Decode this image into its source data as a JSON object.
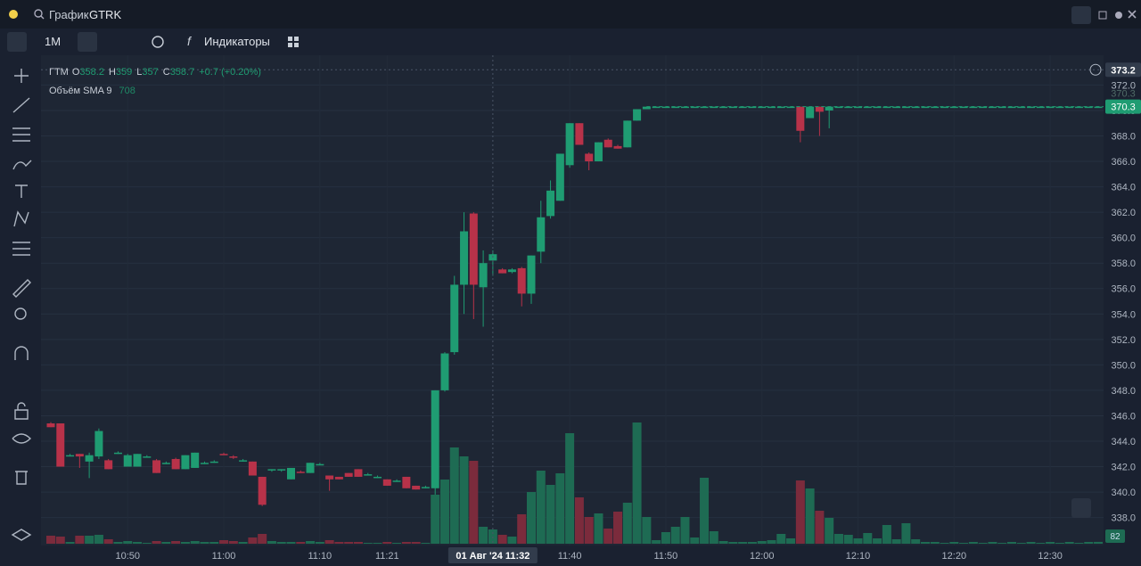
{
  "header": {
    "search_label": "График",
    "symbol": "GTRK"
  },
  "toolbar": {
    "interval": "1M",
    "indicators": "Индикаторы"
  },
  "chart_data": {
    "type": "candlestick",
    "name": "ГТМ",
    "ohlc_letters": [
      "O",
      "H",
      "L",
      "C"
    ],
    "change": "+0.7 (+0.20%)",
    "volume_name": "Объём SMA 9",
    "volume_sma": 708,
    "crosshair_index": 46,
    "crosshair_price": 373.2,
    "crosshair_time": "01 Авг '24  11:32",
    "up_color": "#1f9c72",
    "down_color": "#b83249",
    "volume_up_color": "#1e6b53",
    "volume_down_color": "#7b2b3c",
    "ylim": [
      335.8,
      374.2
    ],
    "yticks": [
      {
        "value": 338,
        "label": "338.0"
      },
      {
        "value": 340,
        "label": "340.0"
      },
      {
        "value": 342,
        "label": "342.0"
      },
      {
        "value": 344,
        "label": "344.0"
      },
      {
        "value": 346,
        "label": "346.0"
      },
      {
        "value": 348,
        "label": "348.0"
      },
      {
        "value": 350,
        "label": "350.0"
      },
      {
        "value": 352,
        "label": "352.0"
      },
      {
        "value": 354,
        "label": "354.0"
      },
      {
        "value": 356,
        "label": "356.0"
      },
      {
        "value": 358,
        "label": "358.0"
      },
      {
        "value": 360,
        "label": "360.0"
      },
      {
        "value": 362,
        "label": "362.0"
      },
      {
        "value": 364,
        "label": "364.0"
      },
      {
        "value": 366,
        "label": "366.0"
      },
      {
        "value": 368,
        "label": "368.0"
      },
      {
        "value": 370,
        "label": "370.0"
      },
      {
        "value": 372,
        "label": "372.0"
      }
    ],
    "volume_lim": [
      0,
      6000
    ],
    "categories": [
      null,
      null,
      null,
      null,
      null,
      null,
      null,
      null,
      "10:50",
      null,
      null,
      null,
      null,
      null,
      null,
      null,
      null,
      null,
      "11:00",
      null,
      null,
      null,
      null,
      null,
      null,
      null,
      null,
      null,
      "11:10",
      null,
      null,
      null,
      null,
      null,
      null,
      "11:21",
      null,
      null,
      null,
      null,
      null,
      null,
      null,
      null,
      null,
      null,
      null,
      null,
      null,
      null,
      null,
      null,
      null,
      null,
      "11:40",
      null,
      null,
      null,
      null,
      null,
      null,
      null,
      null,
      null,
      "11:50",
      null,
      null,
      null,
      null,
      null,
      null,
      null,
      null,
      null,
      "12:00",
      null,
      null,
      null,
      null,
      null,
      null,
      null,
      null,
      null,
      "12:10",
      null,
      null,
      null,
      null,
      null,
      null,
      null,
      null,
      null,
      "12:20",
      null,
      null,
      null,
      null,
      null,
      null,
      null,
      null,
      null,
      "12:30",
      null,
      null,
      null,
      null,
      null
    ],
    "ohlc": [
      [
        345.4,
        345.5,
        345.1,
        345.1
      ],
      [
        345.4,
        345.4,
        342.0,
        342.0
      ],
      [
        342.9,
        343.0,
        342.8,
        342.9
      ],
      [
        343.0,
        343.0,
        341.9,
        342.8
      ],
      [
        342.4,
        343.1,
        341.1,
        342.9
      ],
      [
        342.8,
        345.0,
        342.6,
        344.8
      ],
      [
        342.5,
        342.6,
        341.8,
        341.8
      ],
      [
        343.1,
        343.2,
        343.0,
        343.1
      ],
      [
        342.0,
        343.0,
        342.0,
        342.9
      ],
      [
        342.0,
        343.0,
        342.0,
        343.0
      ],
      [
        342.8,
        342.9,
        342.7,
        342.8
      ],
      [
        342.5,
        342.6,
        341.5,
        341.5
      ],
      [
        342.3,
        342.4,
        342.2,
        342.3
      ],
      [
        342.6,
        342.7,
        341.8,
        341.8
      ],
      [
        341.8,
        342.9,
        341.8,
        342.9
      ],
      [
        341.9,
        343.1,
        341.9,
        343.1
      ],
      [
        342.3,
        342.4,
        342.2,
        342.3
      ],
      [
        342.4,
        342.5,
        342.3,
        342.4
      ],
      [
        343.0,
        343.1,
        342.9,
        342.9
      ],
      [
        342.8,
        342.9,
        342.6,
        342.7
      ],
      [
        342.5,
        342.6,
        342.4,
        342.5
      ],
      [
        342.4,
        342.4,
        341.3,
        341.3
      ],
      [
        341.2,
        341.2,
        338.9,
        339.0
      ],
      [
        341.7,
        341.8,
        341.6,
        341.8
      ],
      [
        341.7,
        341.8,
        341.6,
        341.8
      ],
      [
        341.0,
        341.9,
        341.0,
        341.9
      ],
      [
        341.6,
        341.7,
        341.5,
        341.5
      ],
      [
        341.5,
        342.3,
        341.5,
        342.3
      ],
      [
        342.2,
        342.3,
        342.1,
        342.2
      ],
      [
        341.3,
        341.3,
        340.1,
        341.0
      ],
      [
        341.2,
        341.2,
        341.0,
        341.0
      ],
      [
        341.5,
        341.5,
        341.2,
        341.2
      ],
      [
        341.8,
        341.8,
        341.2,
        341.2
      ],
      [
        341.4,
        341.5,
        341.3,
        341.4
      ],
      [
        341.2,
        341.3,
        341.1,
        341.2
      ],
      [
        341.0,
        341.0,
        340.5,
        340.5
      ],
      [
        340.9,
        341.0,
        340.8,
        340.9
      ],
      [
        341.2,
        341.2,
        340.3,
        340.3
      ],
      [
        340.5,
        340.5,
        340.2,
        340.2
      ],
      [
        340.4,
        340.5,
        340.3,
        340.4
      ],
      [
        340.3,
        348.0,
        339.8,
        348.0
      ],
      [
        348.0,
        351.0,
        347.9,
        350.9
      ],
      [
        351.0,
        357.0,
        350.8,
        356.3
      ],
      [
        356.3,
        362.0,
        354.0,
        360.5
      ],
      [
        361.9,
        362.0,
        353.6,
        356.3
      ],
      [
        356.1,
        359.0,
        353.0,
        358.0
      ],
      [
        358.2,
        359.0,
        357.0,
        358.7
      ],
      [
        357.5,
        357.6,
        357.2,
        357.2
      ],
      [
        357.3,
        357.6,
        357.2,
        357.5
      ],
      [
        357.6,
        357.7,
        354.6,
        355.6
      ],
      [
        355.6,
        358.6,
        354.8,
        358.6
      ],
      [
        358.9,
        362.9,
        358.0,
        361.6
      ],
      [
        361.7,
        364.5,
        361.5,
        363.7
      ],
      [
        362.9,
        366.6,
        362.9,
        366.6
      ],
      [
        365.7,
        369.0,
        365.5,
        369.0
      ],
      [
        369.0,
        369.0,
        367.3,
        367.3
      ],
      [
        366.6,
        366.7,
        365.3,
        366.0
      ],
      [
        366.0,
        367.5,
        366.0,
        367.5
      ],
      [
        367.7,
        367.8,
        367.1,
        367.1
      ],
      [
        367.2,
        367.3,
        367.0,
        367.0
      ],
      [
        367.1,
        369.2,
        367.1,
        369.2
      ],
      [
        369.2,
        370.1,
        369.2,
        370.1
      ],
      [
        370.1,
        370.3,
        370.1,
        370.3
      ],
      [
        370.3,
        370.3,
        370.3,
        370.3
      ],
      [
        370.3,
        370.3,
        370.3,
        370.3
      ],
      [
        370.3,
        370.3,
        370.3,
        370.3
      ],
      [
        370.3,
        370.3,
        370.3,
        370.3
      ],
      [
        370.3,
        370.3,
        370.3,
        370.3
      ],
      [
        370.3,
        370.3,
        370.3,
        370.3
      ],
      [
        370.3,
        370.3,
        370.3,
        370.3
      ],
      [
        370.3,
        370.3,
        370.3,
        370.3
      ],
      [
        370.3,
        370.3,
        370.3,
        370.3
      ],
      [
        370.3,
        370.3,
        370.3,
        370.3
      ],
      [
        370.3,
        370.3,
        370.3,
        370.3
      ],
      [
        370.3,
        370.3,
        370.3,
        370.3
      ],
      [
        370.3,
        370.3,
        370.3,
        370.3
      ],
      [
        370.3,
        370.3,
        370.3,
        370.3
      ],
      [
        370.3,
        370.3,
        370.3,
        370.3
      ],
      [
        370.3,
        370.3,
        367.5,
        368.4
      ],
      [
        369.4,
        370.3,
        369.4,
        370.3
      ],
      [
        370.3,
        370.3,
        368.0,
        369.9
      ],
      [
        370.0,
        370.3,
        368.6,
        370.3
      ],
      [
        370.3,
        370.3,
        370.3,
        370.3
      ],
      [
        370.3,
        370.3,
        370.3,
        370.3
      ],
      [
        370.3,
        370.3,
        370.3,
        370.3
      ],
      [
        370.3,
        370.3,
        370.3,
        370.3
      ],
      [
        370.3,
        370.3,
        370.3,
        370.3
      ],
      [
        370.3,
        370.3,
        370.3,
        370.3
      ],
      [
        370.3,
        370.3,
        370.3,
        370.3
      ],
      [
        370.3,
        370.3,
        370.3,
        370.3
      ],
      [
        370.3,
        370.3,
        370.3,
        370.3
      ],
      [
        370.3,
        370.3,
        370.3,
        370.3
      ],
      [
        370.3,
        370.3,
        370.3,
        370.3
      ],
      [
        370.3,
        370.3,
        370.3,
        370.3
      ],
      [
        370.3,
        370.3,
        370.3,
        370.3
      ],
      [
        370.3,
        370.3,
        370.3,
        370.3
      ],
      [
        370.3,
        370.3,
        370.3,
        370.3
      ],
      [
        370.3,
        370.3,
        370.3,
        370.3
      ],
      [
        370.3,
        370.3,
        370.3,
        370.3
      ],
      [
        370.3,
        370.3,
        370.3,
        370.3
      ],
      [
        370.3,
        370.3,
        370.3,
        370.3
      ],
      [
        370.3,
        370.3,
        370.3,
        370.3
      ],
      [
        370.3,
        370.3,
        370.3,
        370.3
      ],
      [
        370.3,
        370.3,
        370.3,
        370.3
      ],
      [
        370.3,
        370.3,
        370.3,
        370.3
      ],
      [
        370.3,
        370.3,
        370.3,
        370.3
      ],
      [
        370.3,
        370.3,
        370.3,
        370.3
      ],
      [
        370.3,
        370.3,
        370.3,
        370.3
      ],
      [
        370.3,
        370.3,
        370.3,
        370.3
      ],
      [
        370.3,
        370.3,
        370.3,
        370.3
      ]
    ],
    "volume": [
      360,
      320,
      80,
      360,
      360,
      400,
      200,
      80,
      120,
      80,
      40,
      120,
      80,
      120,
      80,
      120,
      80,
      80,
      160,
      120,
      80,
      280,
      440,
      120,
      80,
      80,
      80,
      120,
      80,
      160,
      80,
      80,
      80,
      40,
      40,
      80,
      40,
      80,
      80,
      40,
      2200,
      2880,
      4320,
      3920,
      3720,
      760,
      640,
      400,
      320,
      1320,
      2320,
      3280,
      2640,
      3160,
      4960,
      2080,
      1200,
      1360,
      680,
      1440,
      1840,
      5440,
      1200,
      160,
      520,
      760,
      1200,
      280,
      2960,
      560,
      120,
      80,
      80,
      80,
      120,
      160,
      440,
      240,
      2840,
      2480,
      1480,
      1160,
      440,
      400,
      240,
      480,
      240,
      840,
      200,
      920,
      200,
      80,
      80,
      40,
      80,
      40,
      80,
      40,
      80,
      40,
      80,
      40,
      80,
      40,
      80,
      40,
      80,
      40,
      80,
      82
    ]
  }
}
